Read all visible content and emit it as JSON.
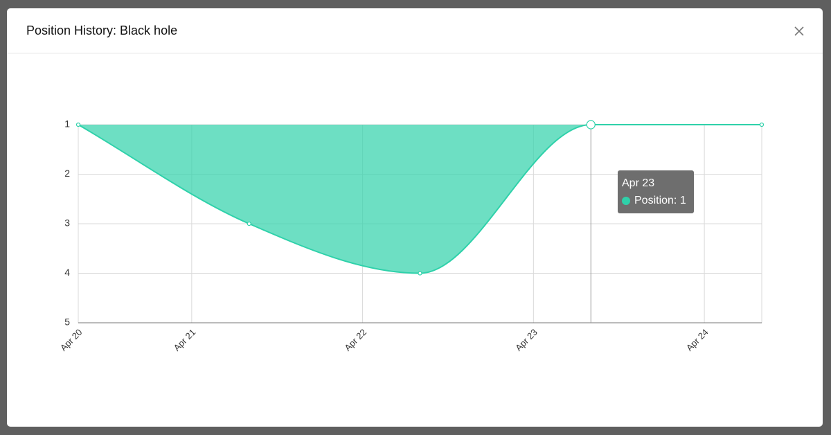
{
  "modal": {
    "title": "Position History: Black hole"
  },
  "chart_data": {
    "type": "area",
    "x": [
      "Apr 20",
      "Apr 21",
      "Apr 22",
      "Apr 23",
      "Apr 24"
    ],
    "series": [
      {
        "name": "Position",
        "color": "#2fd1aa",
        "values": [
          1,
          3,
          4,
          1,
          1
        ]
      }
    ],
    "ylim": [
      5,
      1
    ],
    "yticks": [
      1,
      2,
      3,
      4,
      5
    ],
    "grid": true,
    "tooltip": {
      "label": "Apr 23",
      "text": "Position: 1"
    }
  }
}
